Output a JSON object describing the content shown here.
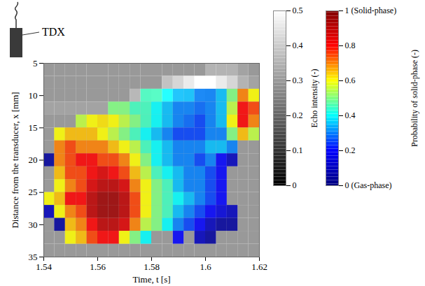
{
  "chart_data": {
    "type": "heatmap",
    "xlabel": "Time, t [s]",
    "ylabel": "Distance from the transducer, x [mm]",
    "xlim": [
      1.54,
      1.62
    ],
    "xticks": [
      1.54,
      1.56,
      1.58,
      1.6,
      1.62
    ],
    "ylim": [
      5,
      35
    ],
    "yticks": [
      5,
      10,
      15,
      20,
      25,
      30,
      35
    ],
    "annotations": [
      "TDX"
    ],
    "echo_intensity": {
      "label": "Echo intensity (-)",
      "range": [
        0,
        0.5
      ],
      "ticks": [
        0,
        0.1,
        0.2,
        0.3,
        0.4,
        0.5
      ],
      "t": [
        1.542,
        1.546,
        1.55,
        1.554,
        1.558,
        1.562,
        1.566,
        1.57,
        1.574,
        1.578,
        1.582,
        1.586,
        1.59,
        1.594,
        1.598,
        1.602,
        1.606,
        1.61,
        1.614,
        1.618
      ],
      "x": [
        6,
        8,
        10,
        12,
        14,
        16,
        18,
        20,
        22,
        24,
        26,
        28,
        30,
        32,
        34
      ],
      "values": [
        [
          0.3,
          0.3,
          0.3,
          0.3,
          0.3,
          0.3,
          0.3,
          0.3,
          0.3,
          0.3,
          0.3,
          0.3,
          0.3,
          0.3,
          0.3,
          0.35,
          0.35,
          0.35,
          0.32,
          0.3
        ],
        [
          0.3,
          0.3,
          0.3,
          0.3,
          0.3,
          0.3,
          0.3,
          0.3,
          0.3,
          0.3,
          0.3,
          0.38,
          0.42,
          0.46,
          0.5,
          0.5,
          0.46,
          0.42,
          0.35,
          0.32
        ],
        [
          0.3,
          0.3,
          0.3,
          0.3,
          0.3,
          0.3,
          0.3,
          0.3,
          0.36,
          0.42,
          0.46,
          0.5,
          0.46,
          0.42,
          0.38,
          0.34,
          0.32,
          0.3,
          0.3,
          0.3
        ],
        [
          0.32,
          0.32,
          0.32,
          0.32,
          0.32,
          0.32,
          0.32,
          0.32,
          0.32,
          0.32,
          0.32,
          0.32,
          0.32,
          0.32,
          0.32,
          0.32,
          0.32,
          0.32,
          0.32,
          0.32
        ],
        [
          0.3,
          0.3,
          0.3,
          0.3,
          0.3,
          0.3,
          0.3,
          0.3,
          0.3,
          0.3,
          0.3,
          0.3,
          0.3,
          0.3,
          0.3,
          0.3,
          0.3,
          0.3,
          0.3,
          0.3
        ],
        [
          0.3,
          0.3,
          0.3,
          0.3,
          0.3,
          0.3,
          0.3,
          0.3,
          0.3,
          0.3,
          0.3,
          0.3,
          0.3,
          0.3,
          0.3,
          0.3,
          0.3,
          0.3,
          0.3,
          0.3
        ],
        [
          0.3,
          0.3,
          0.3,
          0.3,
          0.3,
          0.3,
          0.3,
          0.3,
          0.3,
          0.3,
          0.3,
          0.3,
          0.3,
          0.3,
          0.3,
          0.3,
          0.3,
          0.3,
          0.3,
          0.3
        ],
        [
          0.3,
          0.3,
          0.3,
          0.3,
          0.3,
          0.3,
          0.3,
          0.3,
          0.3,
          0.3,
          0.3,
          0.3,
          0.3,
          0.3,
          0.3,
          0.3,
          0.3,
          0.3,
          0.3,
          0.3
        ],
        [
          0.3,
          0.3,
          0.3,
          0.3,
          0.3,
          0.3,
          0.3,
          0.3,
          0.3,
          0.3,
          0.3,
          0.3,
          0.3,
          0.3,
          0.3,
          0.3,
          0.3,
          0.3,
          0.3,
          0.3
        ],
        [
          0.3,
          0.3,
          0.3,
          0.3,
          0.3,
          0.3,
          0.3,
          0.3,
          0.3,
          0.3,
          0.3,
          0.3,
          0.3,
          0.3,
          0.3,
          0.3,
          0.3,
          0.3,
          0.3,
          0.3
        ],
        [
          0.3,
          0.3,
          0.3,
          0.3,
          0.3,
          0.3,
          0.3,
          0.3,
          0.3,
          0.3,
          0.3,
          0.3,
          0.3,
          0.3,
          0.3,
          0.3,
          0.3,
          0.3,
          0.3,
          0.3
        ],
        [
          0.3,
          0.3,
          0.3,
          0.3,
          0.3,
          0.3,
          0.3,
          0.3,
          0.3,
          0.3,
          0.3,
          0.3,
          0.3,
          0.3,
          0.3,
          0.3,
          0.3,
          0.3,
          0.3,
          0.3
        ],
        [
          0.3,
          0.3,
          0.3,
          0.3,
          0.3,
          0.3,
          0.3,
          0.3,
          0.3,
          0.3,
          0.3,
          0.3,
          0.3,
          0.3,
          0.3,
          0.3,
          0.3,
          0.3,
          0.3,
          0.3
        ],
        [
          0.3,
          0.3,
          0.3,
          0.3,
          0.3,
          0.3,
          0.3,
          0.3,
          0.3,
          0.3,
          0.3,
          0.3,
          0.3,
          0.3,
          0.3,
          0.3,
          0.3,
          0.3,
          0.3,
          0.3
        ],
        [
          0.3,
          0.3,
          0.3,
          0.3,
          0.3,
          0.3,
          0.3,
          0.3,
          0.3,
          0.3,
          0.3,
          0.3,
          0.3,
          0.3,
          0.3,
          0.3,
          0.3,
          0.3,
          0.3,
          0.3
        ]
      ]
    },
    "probability": {
      "label": "Probability of solid-phase (-)",
      "range": [
        0,
        1
      ],
      "ticks": [
        {
          "value": 0,
          "label": "0 (Gas-phase)"
        },
        0.2,
        0.4,
        0.6,
        0.8,
        {
          "value": 1,
          "label": "1 (Solid-phase)"
        }
      ],
      "t": [
        1.542,
        1.546,
        1.55,
        1.554,
        1.558,
        1.562,
        1.566,
        1.57,
        1.574,
        1.578,
        1.582,
        1.586,
        1.59,
        1.594,
        1.598,
        1.602,
        1.606,
        1.61,
        1.614,
        1.618
      ],
      "x": [
        10,
        12,
        14,
        16,
        18,
        20,
        22,
        24,
        26,
        28,
        30,
        32
      ],
      "values": [
        [
          null,
          null,
          null,
          null,
          null,
          null,
          null,
          null,
          null,
          0.45,
          0.45,
          0.4,
          0.35,
          0.35,
          0.3,
          0.3,
          0.35,
          0.5,
          0.7,
          0.6
        ],
        [
          null,
          null,
          null,
          null,
          null,
          null,
          0.5,
          0.5,
          0.45,
          0.45,
          0.4,
          0.35,
          0.3,
          0.3,
          0.28,
          0.3,
          0.35,
          0.55,
          0.8,
          0.75
        ],
        [
          null,
          null,
          null,
          0.55,
          0.6,
          0.62,
          0.6,
          0.55,
          0.5,
          0.45,
          0.4,
          0.35,
          0.3,
          0.28,
          0.25,
          0.3,
          0.35,
          0.6,
          0.8,
          0.7
        ],
        [
          null,
          0.6,
          0.65,
          0.65,
          0.65,
          0.6,
          0.55,
          0.5,
          0.45,
          0.4,
          0.35,
          0.3,
          0.25,
          0.25,
          0.25,
          0.3,
          0.3,
          0.5,
          0.65,
          0.55
        ],
        [
          null,
          0.7,
          0.75,
          0.7,
          0.7,
          0.7,
          0.65,
          0.6,
          0.55,
          0.45,
          0.4,
          0.35,
          0.3,
          0.3,
          0.3,
          0.35,
          0.35,
          0.3,
          null,
          null
        ],
        [
          0.05,
          0.7,
          0.75,
          0.8,
          0.8,
          0.75,
          0.75,
          0.7,
          0.6,
          0.5,
          0.4,
          0.35,
          0.3,
          0.3,
          0.25,
          0.3,
          0.2,
          0.1,
          null,
          null
        ],
        [
          null,
          0.65,
          0.75,
          0.75,
          0.8,
          0.85,
          0.8,
          0.75,
          0.65,
          0.55,
          0.45,
          0.4,
          0.35,
          0.3,
          0.3,
          0.25,
          0.2,
          null,
          null,
          null
        ],
        [
          null,
          0.6,
          0.7,
          0.75,
          0.85,
          0.9,
          0.9,
          0.85,
          0.7,
          0.6,
          0.5,
          0.45,
          0.35,
          0.3,
          0.3,
          0.25,
          0.2,
          null,
          null,
          null
        ],
        [
          0.6,
          0.65,
          0.8,
          0.8,
          0.9,
          0.95,
          0.95,
          0.9,
          0.75,
          0.6,
          0.5,
          0.45,
          0.4,
          0.35,
          0.3,
          0.25,
          0.2,
          null,
          null,
          null
        ],
        [
          0.1,
          0.6,
          0.7,
          0.75,
          0.9,
          0.95,
          0.95,
          0.9,
          0.75,
          0.6,
          0.5,
          0.45,
          0.35,
          0.3,
          0.25,
          0.2,
          0.15,
          0.1,
          null,
          null
        ],
        [
          null,
          0.05,
          0.65,
          0.7,
          0.8,
          0.9,
          0.9,
          0.85,
          0.7,
          0.55,
          0.5,
          0.4,
          0.3,
          0.25,
          0.2,
          0.1,
          0.05,
          0.05,
          null,
          null
        ],
        [
          null,
          null,
          0.6,
          0.65,
          0.75,
          0.8,
          0.8,
          0.6,
          0.5,
          0.4,
          null,
          null,
          0.2,
          null,
          0.1,
          0.05,
          null,
          null,
          null,
          null
        ]
      ]
    }
  }
}
